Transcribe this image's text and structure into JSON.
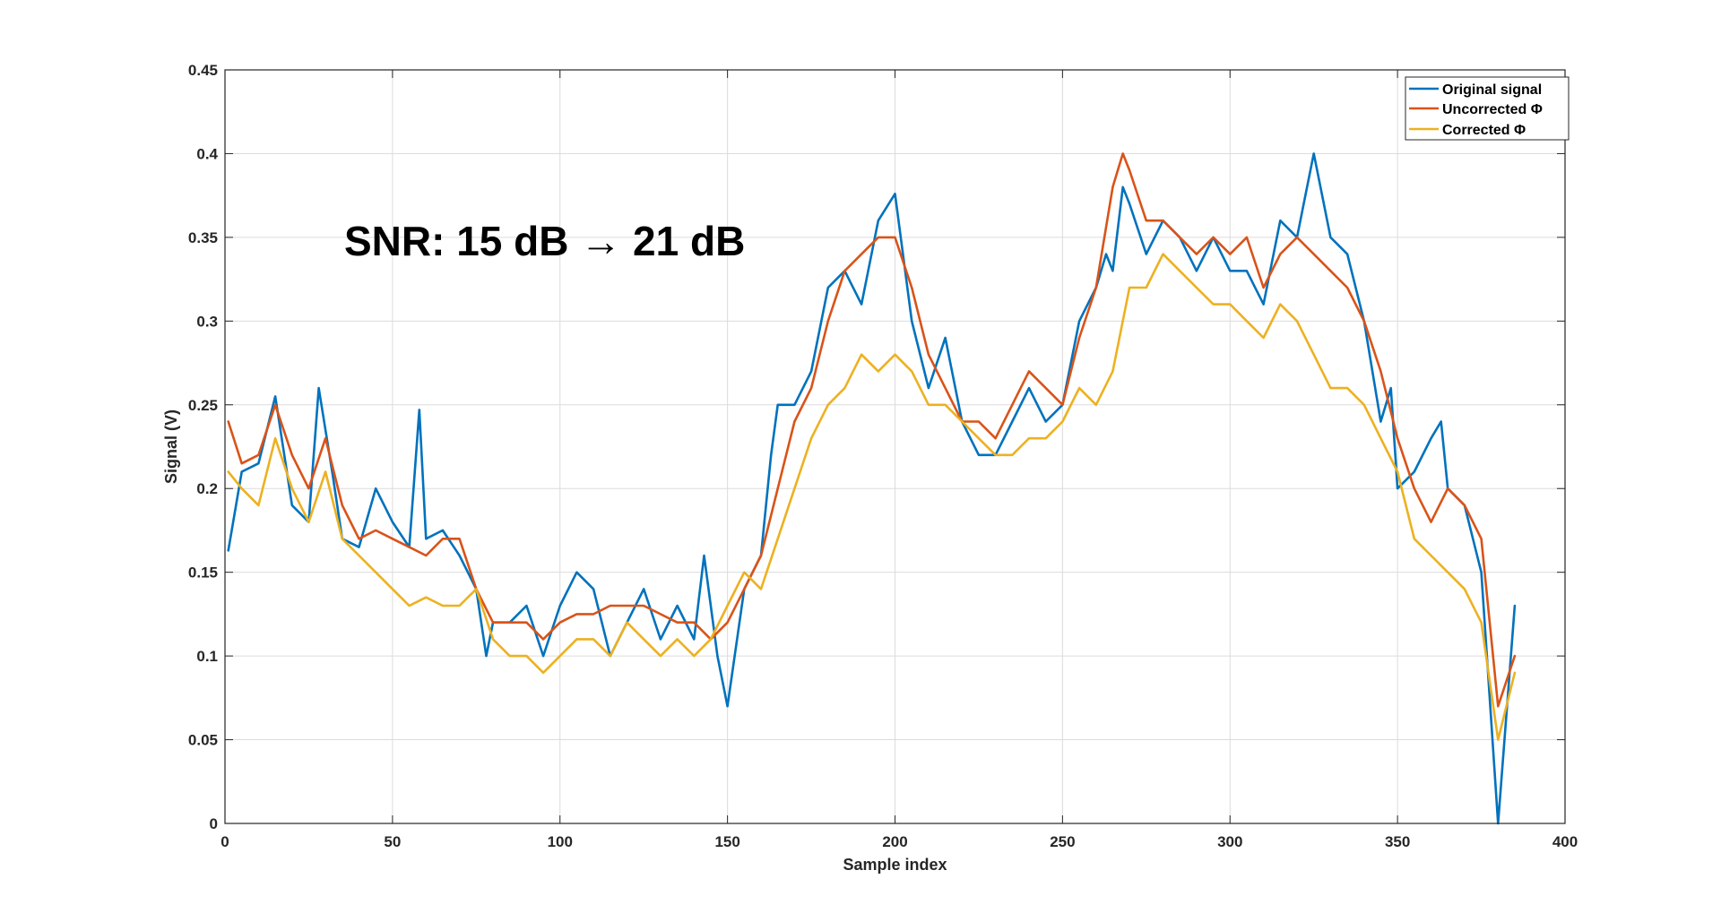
{
  "chart_data": {
    "type": "line",
    "xlabel": "Sample index",
    "ylabel": "Signal (V)",
    "xlim": [
      0,
      400
    ],
    "ylim": [
      0,
      0.45
    ],
    "xticks": [
      "0",
      "50",
      "100",
      "150",
      "200",
      "250",
      "300",
      "350",
      "400"
    ],
    "yticks": [
      "0",
      "0.05",
      "0.1",
      "0.15",
      "0.2",
      "0.25",
      "0.3",
      "0.35",
      "0.4",
      "0.45"
    ],
    "grid": true,
    "legend_position": "top-right",
    "annotation": "SNR: 15 dB → 21 dB",
    "series": [
      {
        "name": "Original signal",
        "color": "#0072BD",
        "x": [
          1,
          5,
          10,
          15,
          20,
          25,
          28,
          32,
          35,
          40,
          45,
          50,
          55,
          58,
          60,
          65,
          70,
          75,
          78,
          80,
          85,
          90,
          95,
          100,
          105,
          110,
          115,
          120,
          125,
          130,
          135,
          140,
          143,
          147,
          150,
          155,
          160,
          163,
          165,
          170,
          175,
          180,
          185,
          190,
          195,
          200,
          205,
          210,
          215,
          220,
          225,
          230,
          235,
          240,
          245,
          250,
          255,
          260,
          263,
          265,
          268,
          270,
          275,
          280,
          285,
          290,
          295,
          300,
          305,
          310,
          315,
          320,
          323,
          325,
          330,
          335,
          340,
          345,
          348,
          350,
          355,
          360,
          363,
          365,
          370,
          375,
          380,
          385
        ],
        "y": [
          0.163,
          0.21,
          0.215,
          0.255,
          0.19,
          0.18,
          0.26,
          0.21,
          0.17,
          0.165,
          0.2,
          0.18,
          0.165,
          0.247,
          0.17,
          0.175,
          0.16,
          0.14,
          0.1,
          0.12,
          0.12,
          0.13,
          0.1,
          0.13,
          0.15,
          0.14,
          0.1,
          0.12,
          0.14,
          0.11,
          0.13,
          0.11,
          0.16,
          0.1,
          0.07,
          0.14,
          0.16,
          0.22,
          0.25,
          0.25,
          0.27,
          0.32,
          0.33,
          0.31,
          0.36,
          0.376,
          0.3,
          0.26,
          0.29,
          0.24,
          0.22,
          0.22,
          0.24,
          0.26,
          0.24,
          0.25,
          0.3,
          0.32,
          0.34,
          0.33,
          0.38,
          0.37,
          0.34,
          0.36,
          0.35,
          0.33,
          0.35,
          0.33,
          0.33,
          0.31,
          0.36,
          0.35,
          0.38,
          0.4,
          0.35,
          0.34,
          0.3,
          0.24,
          0.26,
          0.2,
          0.21,
          0.23,
          0.24,
          0.2,
          0.19,
          0.15,
          0.0,
          0.13
        ]
      },
      {
        "name": "Uncorrected Φ",
        "color": "#D95319",
        "x": [
          1,
          5,
          10,
          15,
          20,
          25,
          30,
          35,
          40,
          45,
          50,
          55,
          60,
          65,
          70,
          75,
          80,
          85,
          90,
          95,
          100,
          105,
          110,
          115,
          120,
          125,
          130,
          135,
          140,
          145,
          150,
          155,
          160,
          165,
          170,
          175,
          180,
          185,
          190,
          195,
          200,
          205,
          210,
          215,
          220,
          225,
          230,
          235,
          240,
          245,
          250,
          255,
          260,
          265,
          268,
          270,
          275,
          280,
          285,
          290,
          295,
          300,
          305,
          310,
          315,
          320,
          325,
          330,
          335,
          340,
          345,
          350,
          355,
          360,
          365,
          370,
          375,
          380,
          385
        ],
        "y": [
          0.24,
          0.215,
          0.22,
          0.25,
          0.22,
          0.2,
          0.23,
          0.19,
          0.17,
          0.175,
          0.17,
          0.165,
          0.16,
          0.17,
          0.17,
          0.14,
          0.12,
          0.12,
          0.12,
          0.11,
          0.12,
          0.125,
          0.125,
          0.13,
          0.13,
          0.13,
          0.125,
          0.12,
          0.12,
          0.11,
          0.12,
          0.14,
          0.16,
          0.2,
          0.24,
          0.26,
          0.3,
          0.33,
          0.34,
          0.35,
          0.35,
          0.32,
          0.28,
          0.26,
          0.24,
          0.24,
          0.23,
          0.25,
          0.27,
          0.26,
          0.25,
          0.29,
          0.32,
          0.38,
          0.4,
          0.39,
          0.36,
          0.36,
          0.35,
          0.34,
          0.35,
          0.34,
          0.35,
          0.32,
          0.34,
          0.35,
          0.34,
          0.33,
          0.32,
          0.3,
          0.27,
          0.23,
          0.2,
          0.18,
          0.2,
          0.19,
          0.17,
          0.07,
          0.1
        ]
      },
      {
        "name": "Corrected Φ",
        "color": "#EDB120",
        "x": [
          1,
          5,
          10,
          15,
          20,
          25,
          30,
          35,
          40,
          45,
          50,
          55,
          60,
          65,
          70,
          75,
          80,
          85,
          90,
          95,
          100,
          105,
          110,
          115,
          120,
          125,
          130,
          135,
          140,
          145,
          150,
          155,
          160,
          165,
          170,
          175,
          180,
          185,
          190,
          195,
          200,
          205,
          210,
          215,
          220,
          225,
          230,
          235,
          240,
          245,
          250,
          255,
          260,
          265,
          270,
          275,
          280,
          285,
          290,
          295,
          300,
          305,
          310,
          315,
          320,
          325,
          330,
          335,
          340,
          345,
          350,
          355,
          360,
          365,
          370,
          375,
          380,
          385
        ],
        "y": [
          0.21,
          0.2,
          0.19,
          0.23,
          0.2,
          0.18,
          0.21,
          0.17,
          0.16,
          0.15,
          0.14,
          0.13,
          0.135,
          0.13,
          0.13,
          0.14,
          0.11,
          0.1,
          0.1,
          0.09,
          0.1,
          0.11,
          0.11,
          0.1,
          0.12,
          0.11,
          0.1,
          0.11,
          0.1,
          0.11,
          0.13,
          0.15,
          0.14,
          0.17,
          0.2,
          0.23,
          0.25,
          0.26,
          0.28,
          0.27,
          0.28,
          0.27,
          0.25,
          0.25,
          0.24,
          0.23,
          0.22,
          0.22,
          0.23,
          0.23,
          0.24,
          0.26,
          0.25,
          0.27,
          0.32,
          0.32,
          0.34,
          0.33,
          0.32,
          0.31,
          0.31,
          0.3,
          0.29,
          0.31,
          0.3,
          0.28,
          0.26,
          0.26,
          0.25,
          0.23,
          0.21,
          0.17,
          0.16,
          0.15,
          0.14,
          0.12,
          0.05,
          0.09
        ]
      }
    ]
  }
}
